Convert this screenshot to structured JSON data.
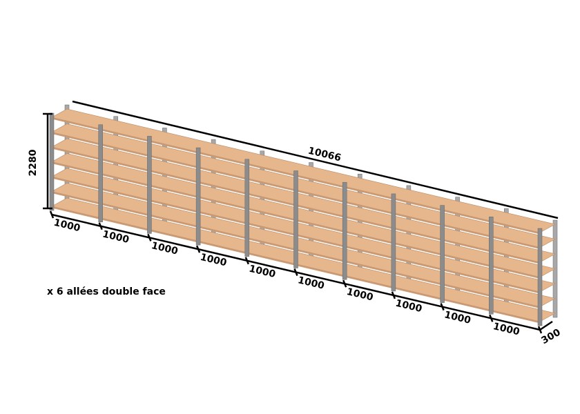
{
  "dimensions": {
    "length": "10066",
    "height": "2280",
    "depth": "300",
    "bays": [
      "1000",
      "1000",
      "1000",
      "1000",
      "1000",
      "1000",
      "1000",
      "1000",
      "1000",
      "1000"
    ]
  },
  "note": "x 6 allées double face"
}
